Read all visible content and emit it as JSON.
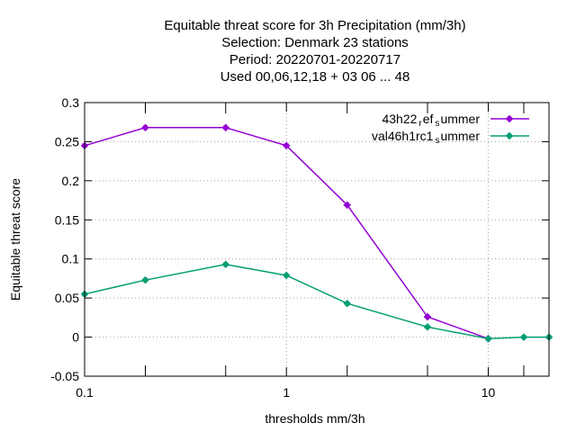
{
  "chart_data": {
    "type": "line",
    "title_lines": [
      "Equitable threat score  for 3h Precipitation (mm/3h)",
      "Selection: Denmark     23 stations",
      "Period: 20220701-20220717",
      "Used  00,06,12,18  + 03 06 ... 48"
    ],
    "xlabel": "thresholds mm/3h",
    "ylabel": "Equitable threat score",
    "x_scale": "log",
    "xlim": [
      0.1,
      20
    ],
    "ylim": [
      -0.05,
      0.3
    ],
    "x_ticks": [
      {
        "value": 0.1,
        "label": "0.1"
      },
      {
        "value": 1,
        "label": "1"
      },
      {
        "value": 10,
        "label": "10"
      }
    ],
    "x_minor_ticks": [
      0.2,
      0.5,
      2,
      5,
      15,
      20
    ],
    "y_ticks": [
      {
        "value": -0.05,
        "label": "-0.05"
      },
      {
        "value": 0,
        "label": "0"
      },
      {
        "value": 0.05,
        "label": "0.05"
      },
      {
        "value": 0.1,
        "label": "0.1"
      },
      {
        "value": 0.15,
        "label": "0.15"
      },
      {
        "value": 0.2,
        "label": "0.2"
      },
      {
        "value": 0.25,
        "label": "0.25"
      },
      {
        "value": 0.3,
        "label": "0.3"
      }
    ],
    "grid": true,
    "legend_position": "top-right",
    "series": [
      {
        "legend_parts": [
          "43h22",
          "r",
          "ef",
          "s",
          "ummer"
        ],
        "color": "#9400d3",
        "x": [
          0.1,
          0.2,
          0.5,
          1,
          2,
          5,
          10
        ],
        "y": [
          0.245,
          0.268,
          0.268,
          0.245,
          0.169,
          0.026,
          -0.002
        ]
      },
      {
        "legend_parts": [
          "val46h1rc1",
          "s",
          "ummer"
        ],
        "color": "#009e73",
        "x": [
          0.1,
          0.2,
          0.5,
          1,
          2,
          5,
          10,
          15,
          20
        ],
        "y": [
          0.055,
          0.073,
          0.093,
          0.079,
          0.043,
          0.013,
          -0.002,
          0.0,
          0.0
        ]
      }
    ]
  }
}
